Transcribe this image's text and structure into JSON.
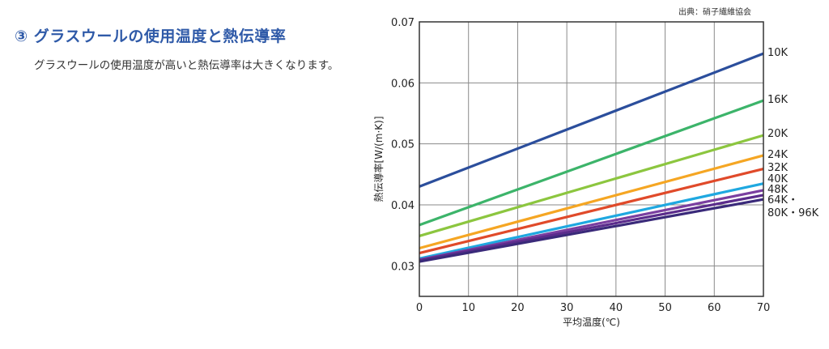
{
  "section": {
    "heading": "③ グラスウールの使用温度と熱伝導率",
    "description": "グラスウールの使用温度が高いと熱伝導率は大きくなります。"
  },
  "source_note": "出典：硝子繊維協会",
  "chart_data": {
    "type": "line",
    "xlabel": "平均温度(℃)",
    "ylabel": "熱伝導率[W/(m·K)]",
    "xlim": [
      0,
      70
    ],
    "ylim": [
      0.025,
      0.07
    ],
    "x_ticks": [
      0,
      10,
      20,
      30,
      40,
      50,
      60,
      70
    ],
    "y_ticks": [
      0.03,
      0.04,
      0.05,
      0.06,
      0.07
    ],
    "y_tick_labels": [
      "0.03",
      "0.04",
      "0.05",
      "0.06",
      "0.07"
    ],
    "grid": true,
    "series": [
      {
        "name": "10K",
        "x": [
          0,
          70
        ],
        "y": [
          0.043,
          0.0648
        ],
        "color": "#2b4e9c"
      },
      {
        "name": "16K",
        "x": [
          0,
          70
        ],
        "y": [
          0.0367,
          0.0571
        ],
        "color": "#3cb46a"
      },
      {
        "name": "20K",
        "x": [
          0,
          70
        ],
        "y": [
          0.0349,
          0.0514
        ],
        "color": "#8cc63f"
      },
      {
        "name": "24K",
        "x": [
          0,
          70
        ],
        "y": [
          0.0329,
          0.0481
        ],
        "color": "#f5a623"
      },
      {
        "name": "32K",
        "x": [
          0,
          70
        ],
        "y": [
          0.0321,
          0.0459
        ],
        "color": "#e04a2a"
      },
      {
        "name": "40K",
        "x": [
          0,
          70
        ],
        "y": [
          0.0312,
          0.0435
        ],
        "color": "#1fa8e0"
      },
      {
        "name": "48K",
        "x": [
          0,
          70
        ],
        "y": [
          0.031,
          0.0424
        ],
        "color": "#7a3fa0"
      },
      {
        "name": "64K・",
        "x": [
          0,
          70
        ],
        "y": [
          0.0309,
          0.0416
        ],
        "color": "#5b2c8c"
      },
      {
        "name": "80K・96K",
        "x": [
          0,
          70
        ],
        "y": [
          0.0307,
          0.0409
        ],
        "color": "#3a2a7a"
      }
    ]
  }
}
